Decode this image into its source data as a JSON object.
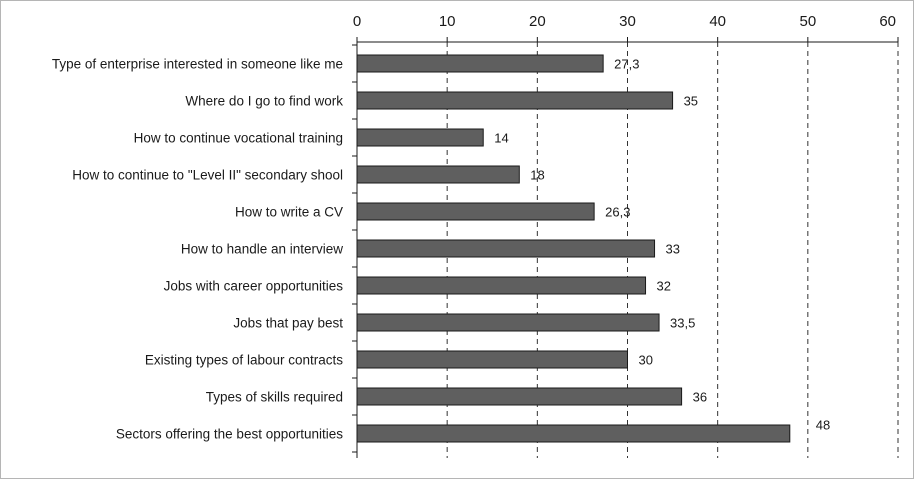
{
  "chart_data": {
    "type": "bar",
    "orientation": "horizontal",
    "title": "",
    "xlabel": "",
    "ylabel": "",
    "xlim": [
      0,
      60
    ],
    "ticks": [
      0,
      10,
      20,
      30,
      40,
      50,
      60
    ],
    "tick_labels": [
      "0",
      "10",
      "20",
      "30",
      "40",
      "50",
      "60"
    ],
    "grid": "vertical dashed",
    "categories": [
      "Type of enterprise interested in someone like me",
      "Where do I go to find work",
      "How to continue vocational training",
      "How to continue to \"Level II\" secondary shool",
      "How to write a CV",
      "How to handle an interview",
      "Jobs with career opportunities",
      "Jobs that pay best",
      "Existing types of labour contracts",
      "Types of skills required",
      "Sectors offering the best opportunities"
    ],
    "values": [
      27.3,
      35,
      14,
      18,
      26.3,
      33,
      32,
      33.5,
      30,
      36,
      48
    ],
    "value_labels": [
      "27,3",
      "35",
      "14",
      "18",
      "26,3",
      "33",
      "32",
      "33,5",
      "30",
      "36",
      "48"
    ],
    "colors": {
      "bar": "#5f5f5f",
      "bar_edge": "#1a1a1a",
      "axis": "#1a1a1a",
      "grid": "#333333"
    }
  }
}
